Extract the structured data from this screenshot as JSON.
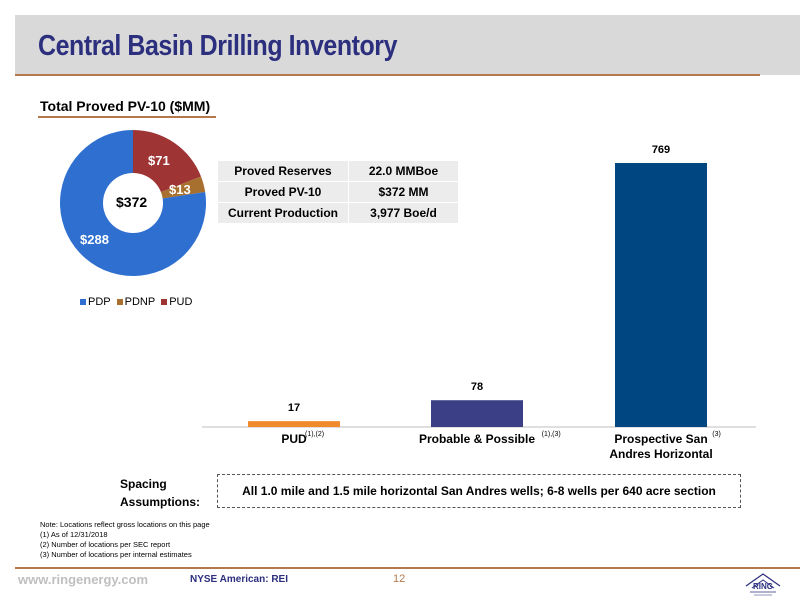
{
  "header": {
    "title": "Central Basin Drilling Inventory"
  },
  "section": {
    "title": "Total Proved PV-10 ($MM)"
  },
  "pie": {
    "total_label": "$372",
    "slices": [
      {
        "name": "PDP",
        "value": 288,
        "label": "$288",
        "color": "#2e6fcf"
      },
      {
        "name": "PDNP",
        "value": 13,
        "label": "$13",
        "color": "#a8702f"
      },
      {
        "name": "PUD",
        "value": 71,
        "label": "$71",
        "color": "#9e3434"
      }
    ]
  },
  "legend": [
    {
      "name": "PDP",
      "color": "#2e6fcf"
    },
    {
      "name": "PDNP",
      "color": "#a8702f"
    },
    {
      "name": "PUD",
      "color": "#9e3434"
    }
  ],
  "stats": [
    {
      "key": "Proved Reserves",
      "value": "22.0 MMBoe"
    },
    {
      "key": "Proved PV-10",
      "value": "$372 MM"
    },
    {
      "key": "Current Production",
      "value": "3,977 Boe/d"
    }
  ],
  "chart_data": [
    {
      "type": "pie",
      "categories": [
        "PDP",
        "PDNP",
        "PUD"
      ],
      "values": [
        288,
        13,
        71
      ],
      "title": "Total Proved PV-10 ($MM)"
    },
    {
      "type": "bar",
      "categories": [
        "PUD",
        "Probable & Possible",
        "Prospective San Andres Horizontal"
      ],
      "category_lines": [
        [
          "PUD"
        ],
        [
          "Probable & Possible"
        ],
        [
          "Prospective San",
          "Andres Horizontal"
        ]
      ],
      "superscripts": [
        "(1),(2)",
        "(1),(3)",
        "(3)"
      ],
      "values": [
        17,
        78,
        769
      ],
      "colors": [
        "#f08a2c",
        "#3a3f86",
        "#004680"
      ],
      "ylim": [
        0,
        800
      ]
    }
  ],
  "spacing": {
    "label_line1": "Spacing",
    "label_line2": "Assumptions:",
    "text": "All 1.0 mile and 1.5 mile horizontal San Andres wells; 6-8 wells per 640 acre section"
  },
  "notes": [
    "Note: Locations reflect gross locations on this page",
    "(1) As of 12/31/2018",
    "(2) Number of locations per SEC report",
    "(3) Number of locations per internal estimates"
  ],
  "footer": {
    "website": "www.ringenergy.com",
    "ticker": "NYSE American: REI",
    "page_number": "12",
    "logo_text": "RING"
  }
}
